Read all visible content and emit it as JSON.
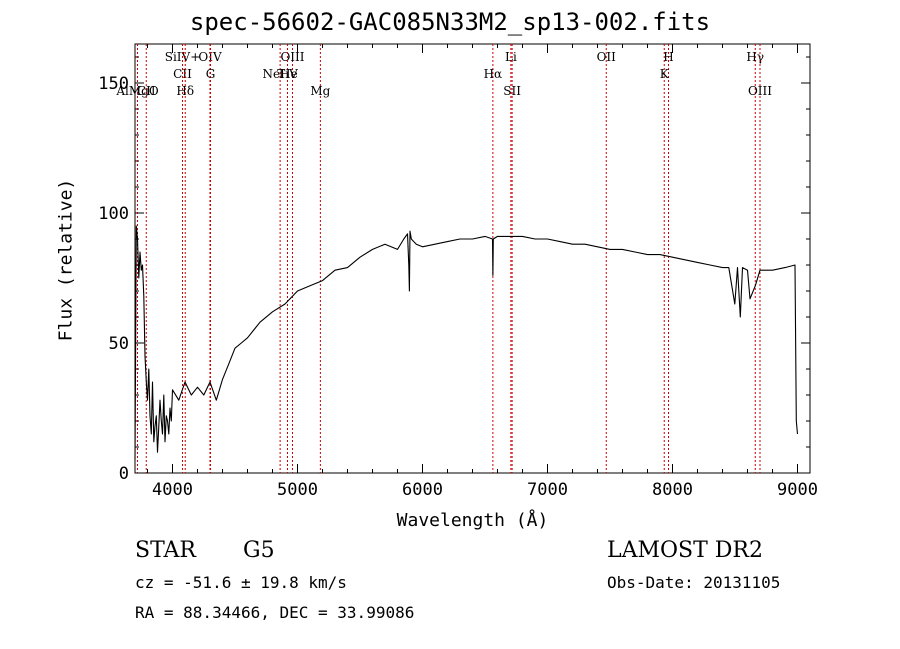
{
  "chart_data": {
    "type": "line",
    "title": "spec-56602-GAC085N33M2_sp13-002.fits",
    "xlabel": "Wavelength (Å)",
    "ylabel": "Flux (relative)",
    "xlim": [
      3700,
      9100
    ],
    "ylim": [
      0,
      165
    ],
    "xticks": [
      4000,
      5000,
      6000,
      7000,
      8000,
      9000
    ],
    "yticks": [
      0,
      50,
      100,
      150
    ],
    "grid": false,
    "line_color": "#000000",
    "marker_color": "#cc0000",
    "series": [
      {
        "x": [
          3700,
          3710,
          3720,
          3730,
          3740,
          3750,
          3760,
          3770,
          3780,
          3790,
          3800,
          3810,
          3820,
          3830,
          3840,
          3850,
          3860,
          3870,
          3880,
          3890,
          3900,
          3910,
          3920,
          3930,
          3940,
          3950,
          3960,
          3970,
          3980,
          3990,
          4000,
          4050,
          4100,
          4150,
          4200,
          4250,
          4300,
          4350,
          4400,
          4450,
          4500,
          4550,
          4600,
          4700,
          4800,
          4900,
          5000,
          5100,
          5200,
          5300,
          5400,
          5500,
          5600,
          5700,
          5800,
          5850,
          5880,
          5890,
          5895,
          5900,
          5910,
          5950,
          6000,
          6100,
          6200,
          6300,
          6400,
          6500,
          6560,
          6563,
          6566,
          6600,
          6700,
          6800,
          6900,
          7000,
          7100,
          7200,
          7300,
          7400,
          7500,
          7600,
          7700,
          7800,
          7900,
          8000,
          8100,
          8200,
          8300,
          8400,
          8450,
          8498,
          8520,
          8542,
          8560,
          8600,
          8620,
          8662,
          8700,
          8800,
          8900,
          8980,
          8990,
          9000
        ],
        "y": [
          5,
          95,
          90,
          75,
          85,
          78,
          80,
          68,
          45,
          35,
          28,
          40,
          22,
          15,
          35,
          12,
          18,
          22,
          8,
          18,
          28,
          20,
          15,
          30,
          12,
          22,
          20,
          15,
          25,
          20,
          32,
          28,
          35,
          30,
          33,
          30,
          35,
          28,
          36,
          42,
          48,
          50,
          52,
          58,
          62,
          65,
          70,
          72,
          74,
          78,
          79,
          83,
          86,
          88,
          86,
          90,
          92,
          80,
          70,
          93,
          90,
          88,
          87,
          88,
          89,
          90,
          90,
          91,
          90,
          76,
          90,
          91,
          91,
          91,
          90,
          90,
          89,
          88,
          88,
          87,
          86,
          86,
          85,
          84,
          84,
          83,
          82,
          81,
          80,
          79,
          79,
          65,
          79,
          60,
          79,
          78,
          67,
          72,
          78,
          78,
          79,
          80,
          20,
          15
        ]
      }
    ],
    "line_markers": [
      {
        "label": "AlMgO",
        "x": 3720,
        "row": 2
      },
      {
        "label": "CII",
        "x": 3790,
        "row": 2
      },
      {
        "label": "SiIV+",
        "x": 4080,
        "row": 0
      },
      {
        "label": "CII",
        "x": 4080,
        "row": 1
      },
      {
        "label": "Hδ",
        "x": 4102,
        "row": 2
      },
      {
        "label": "OIV",
        "x": 4300,
        "row": 0
      },
      {
        "label": "G",
        "x": 4304,
        "row": 1
      },
      {
        "label": "OIII",
        "x": 4960,
        "row": 0
      },
      {
        "label": "NeHe",
        "x": 4861,
        "row": 1
      },
      {
        "label": "TiV",
        "x": 4920,
        "row": 1
      },
      {
        "label": "Mg",
        "x": 5183,
        "row": 2
      },
      {
        "label": "Li",
        "x": 6707,
        "row": 0
      },
      {
        "label": "Hα",
        "x": 6563,
        "row": 1
      },
      {
        "label": "SII",
        "x": 6717,
        "row": 2
      },
      {
        "label": "OII",
        "x": 7470,
        "row": 0
      },
      {
        "label": "H",
        "x": 7968,
        "row": 0
      },
      {
        "label": "K",
        "x": 7934,
        "row": 1
      },
      {
        "label": "Hγ",
        "x": 8662,
        "row": 0
      },
      {
        "label": "OIII",
        "x": 8700,
        "row": 2
      }
    ]
  },
  "info": {
    "object_type": "STAR",
    "subclass": "G5",
    "survey": "LAMOST DR2",
    "redshift_line": "cz = -51.6 ± 19.8 km/s",
    "obs_date": "Obs-Date: 20131105",
    "coords": "RA =  88.34466, DEC =  33.99086"
  }
}
